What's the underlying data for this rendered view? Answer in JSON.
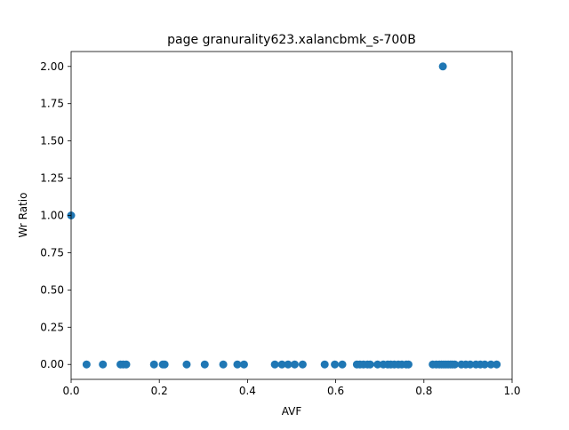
{
  "chart_data": {
    "type": "scatter",
    "title": "page granurality623.xalancbmk_s-700B",
    "xlabel": "AVF",
    "ylabel": "Wr Ratio",
    "xlim": [
      0.0,
      1.0
    ],
    "ylim": [
      -0.1,
      2.1
    ],
    "xticks": [
      0.0,
      0.2,
      0.4,
      0.6,
      0.8,
      1.0
    ],
    "xtick_labels": [
      "0.0",
      "0.2",
      "0.4",
      "0.6",
      "0.8",
      "1.0"
    ],
    "yticks": [
      0.0,
      0.25,
      0.5,
      0.75,
      1.0,
      1.25,
      1.5,
      1.75,
      2.0
    ],
    "ytick_labels": [
      "0.00",
      "0.25",
      "0.50",
      "0.75",
      "1.00",
      "1.25",
      "1.50",
      "1.75",
      "2.00"
    ],
    "grid": false,
    "marker_color": "#1f77b4",
    "points": [
      [
        0.0,
        1.0
      ],
      [
        0.843,
        2.0
      ],
      [
        0.035,
        0.0
      ],
      [
        0.072,
        0.0
      ],
      [
        0.112,
        0.0
      ],
      [
        0.118,
        0.0
      ],
      [
        0.125,
        0.0
      ],
      [
        0.188,
        0.0
      ],
      [
        0.208,
        0.0
      ],
      [
        0.212,
        0.0
      ],
      [
        0.262,
        0.0
      ],
      [
        0.303,
        0.0
      ],
      [
        0.345,
        0.0
      ],
      [
        0.377,
        0.0
      ],
      [
        0.392,
        0.0
      ],
      [
        0.462,
        0.0
      ],
      [
        0.478,
        0.0
      ],
      [
        0.492,
        0.0
      ],
      [
        0.507,
        0.0
      ],
      [
        0.525,
        0.0
      ],
      [
        0.575,
        0.0
      ],
      [
        0.598,
        0.0
      ],
      [
        0.615,
        0.0
      ],
      [
        0.648,
        0.0
      ],
      [
        0.655,
        0.0
      ],
      [
        0.663,
        0.0
      ],
      [
        0.672,
        0.0
      ],
      [
        0.678,
        0.0
      ],
      [
        0.695,
        0.0
      ],
      [
        0.708,
        0.0
      ],
      [
        0.718,
        0.0
      ],
      [
        0.725,
        0.0
      ],
      [
        0.733,
        0.0
      ],
      [
        0.742,
        0.0
      ],
      [
        0.75,
        0.0
      ],
      [
        0.76,
        0.0
      ],
      [
        0.765,
        0.0
      ],
      [
        0.82,
        0.0
      ],
      [
        0.828,
        0.0
      ],
      [
        0.835,
        0.0
      ],
      [
        0.84,
        0.0
      ],
      [
        0.845,
        0.0
      ],
      [
        0.85,
        0.0
      ],
      [
        0.855,
        0.0
      ],
      [
        0.86,
        0.0
      ],
      [
        0.865,
        0.0
      ],
      [
        0.87,
        0.0
      ],
      [
        0.885,
        0.0
      ],
      [
        0.895,
        0.0
      ],
      [
        0.905,
        0.0
      ],
      [
        0.918,
        0.0
      ],
      [
        0.928,
        0.0
      ],
      [
        0.938,
        0.0
      ],
      [
        0.952,
        0.0
      ],
      [
        0.965,
        0.0
      ]
    ]
  }
}
